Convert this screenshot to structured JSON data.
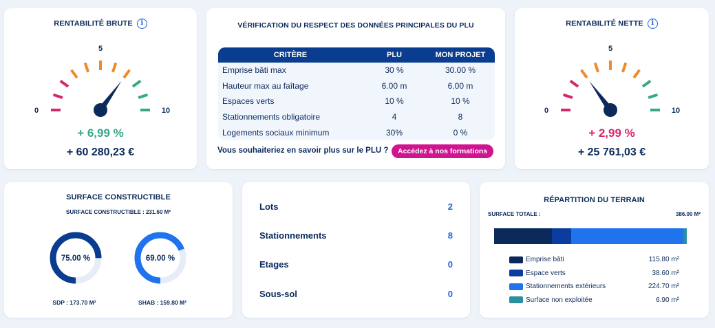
{
  "rentabilite_brute": {
    "title": "RENTABILITÉ BRUTE",
    "info_icon": "i",
    "scale_min": "0",
    "scale_mid": "5",
    "scale_max": "10",
    "needle_value": 6.99,
    "percent": "+ 6,99  %",
    "amount": "+ 60 280,23 €",
    "percent_color": "#34a88a"
  },
  "verification_plu": {
    "title": "VÉRIFICATION DU RESPECT DES DONNÉES PRINCIPALES DU PLU",
    "headers": [
      "CRITÈRE",
      "PLU",
      "MON PROJET"
    ],
    "rows": [
      {
        "critere": "Emprise bâti max",
        "plu": "30 %",
        "projet": "30.00 %",
        "status": "ok"
      },
      {
        "critere": "Hauteur max au faîtage",
        "plu": "6.00 m",
        "projet": "6.00 m",
        "status": "ok"
      },
      {
        "critere": "Espaces verts",
        "plu": "10 %",
        "projet": "10 %",
        "status": "ok"
      },
      {
        "critere": "Stationnements obligatoire",
        "plu": "4",
        "projet": "8",
        "status": "ok"
      },
      {
        "critere": "Logements sociaux minimum",
        "plu": "30%",
        "projet": "0 %",
        "status": "bad"
      }
    ],
    "question": "Vous souhaiteriez en savoir plus sur le PLU ?",
    "cta_label": "Accédez à nos formations"
  },
  "rentabilite_nette": {
    "title": "RENTABILITÉ NETTE",
    "info_icon": "i",
    "scale_min": "0",
    "scale_mid": "5",
    "scale_max": "10",
    "needle_value": 2.99,
    "percent": "+ 2,99  %",
    "amount": "+ 25 761,03 €",
    "percent_color": "#d6266d"
  },
  "surface_constructible": {
    "title": "SURFACE CONSTRUCTIBLE",
    "subtitle": "SURFACE CONSTRUCTIBLE : 231.60 M²",
    "donut1": {
      "label": "75.00 %",
      "fraction": 0.75,
      "caption": "SDP : 173.70 M²",
      "color": "#0a3d8f"
    },
    "donut2": {
      "label": "69.00 %",
      "fraction": 0.69,
      "caption": "SHAB : 159.80 M²",
      "color": "#1f74ee"
    }
  },
  "stats": [
    {
      "label": "Lots",
      "value": "2"
    },
    {
      "label": "Stationnements",
      "value": "8"
    },
    {
      "label": "Etages",
      "value": "0"
    },
    {
      "label": "Sous-sol",
      "value": "0"
    }
  ],
  "repartition": {
    "title": "RÉPARTITION DU TERRAIN",
    "total_label": "SURFACE TOTALE :",
    "total_value": "386.00 M²",
    "segments": [
      {
        "label": "Emprise bâti",
        "value": "115.80 m²",
        "amount": 115.8,
        "color": "#0b2a5b"
      },
      {
        "label": "Espace verts",
        "value": "38.60 m²",
        "amount": 38.6,
        "color": "#0a3d9f"
      },
      {
        "label": "Stationnements extérieurs",
        "value": "224.70 m²",
        "amount": 224.7,
        "color": "#1f74ee"
      },
      {
        "label": "Surface non exploitée",
        "value": "6.90 m²",
        "amount": 6.9,
        "color": "#2b8fa3"
      }
    ]
  }
}
